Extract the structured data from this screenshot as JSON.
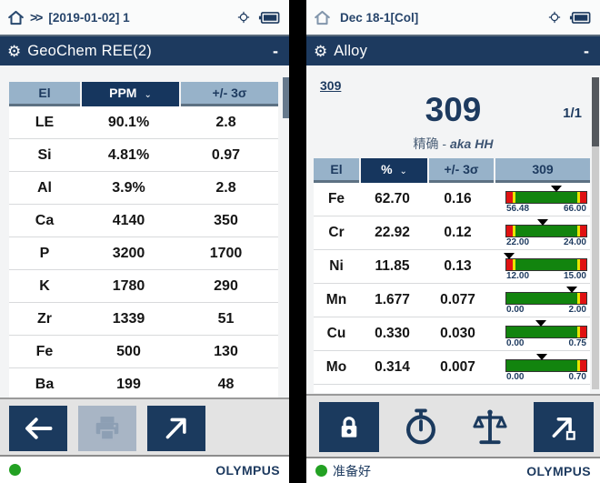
{
  "colors": {
    "navy": "#1d3a5f",
    "header_blue": "#97b2c9",
    "bar_green": "#12840e",
    "bar_red": "#e01212",
    "bar_yellow": "#e8e400",
    "status_green": "#23a123"
  },
  "left": {
    "top_bar": {
      "chevrons": ">>",
      "title": "[2019-01-02] 1"
    },
    "title_bar": {
      "title": "GeoChem REE(2)",
      "minimize": "-"
    },
    "table": {
      "headers": {
        "el": "El",
        "unit": "PPM",
        "sigma": "+/- 3σ"
      },
      "rows": [
        {
          "el": "LE",
          "value": "90.1%",
          "sigma": "2.8"
        },
        {
          "el": "Si",
          "value": "4.81%",
          "sigma": "0.97"
        },
        {
          "el": "Al",
          "value": "3.9%",
          "sigma": "2.8"
        },
        {
          "el": "Ca",
          "value": "4140",
          "sigma": "350"
        },
        {
          "el": "P",
          "value": "3200",
          "sigma": "1700"
        },
        {
          "el": "K",
          "value": "1780",
          "sigma": "290"
        },
        {
          "el": "Zr",
          "value": "1339",
          "sigma": "51"
        },
        {
          "el": "Fe",
          "value": "500",
          "sigma": "130"
        },
        {
          "el": "Ba",
          "value": "199",
          "sigma": "48"
        }
      ]
    },
    "toolbar": {
      "buttons": [
        {
          "name": "back-button",
          "icon": "arrow-left-icon",
          "disabled": false
        },
        {
          "name": "print-button",
          "icon": "printer-icon",
          "disabled": true
        },
        {
          "name": "export-button",
          "icon": "arrow-up-right-icon",
          "disabled": false
        }
      ]
    },
    "footer": {
      "brand": "OLYMPUS"
    }
  },
  "right": {
    "top_bar": {
      "title": "Dec 18-1[Col]"
    },
    "title_bar": {
      "title": "Alloy",
      "minimize": "-"
    },
    "result": {
      "grade_link": "309",
      "grade": "309",
      "page": "1/1",
      "note_prefix": "精确 - ",
      "note_alias": "aka HH"
    },
    "table": {
      "headers": {
        "el": "El",
        "unit": "%",
        "sigma": "+/- 3σ",
        "grade": "309"
      },
      "rows": [
        {
          "el": "Fe",
          "value": "62.70",
          "sigma": "0.16",
          "min": "56.48",
          "max": "66.00",
          "pos": 63,
          "left_cap": true
        },
        {
          "el": "Cr",
          "value": "22.92",
          "sigma": "0.12",
          "min": "22.00",
          "max": "24.00",
          "pos": 45,
          "left_cap": true
        },
        {
          "el": "Ni",
          "value": "11.85",
          "sigma": "0.13",
          "min": "12.00",
          "max": "15.00",
          "pos": 3,
          "left_cap": true
        },
        {
          "el": "Mn",
          "value": "1.677",
          "sigma": "0.077",
          "min": "0.00",
          "max": "2.00",
          "pos": 82,
          "left_cap": false
        },
        {
          "el": "Cu",
          "value": "0.330",
          "sigma": "0.030",
          "min": "0.00",
          "max": "0.75",
          "pos": 43,
          "left_cap": false
        },
        {
          "el": "Mo",
          "value": "0.314",
          "sigma": "0.007",
          "min": "0.00",
          "max": "0.70",
          "pos": 44,
          "left_cap": false
        }
      ]
    },
    "toolbar": {
      "buttons": [
        {
          "name": "lock-button",
          "icon": "lock-icon"
        },
        {
          "name": "timer-button",
          "icon": "stopwatch-icon"
        },
        {
          "name": "balance-button",
          "icon": "scale-icon"
        },
        {
          "name": "export-button",
          "icon": "arrow-up-right-box-icon"
        }
      ]
    },
    "footer": {
      "status": "准备好",
      "brand": "OLYMPUS"
    }
  }
}
